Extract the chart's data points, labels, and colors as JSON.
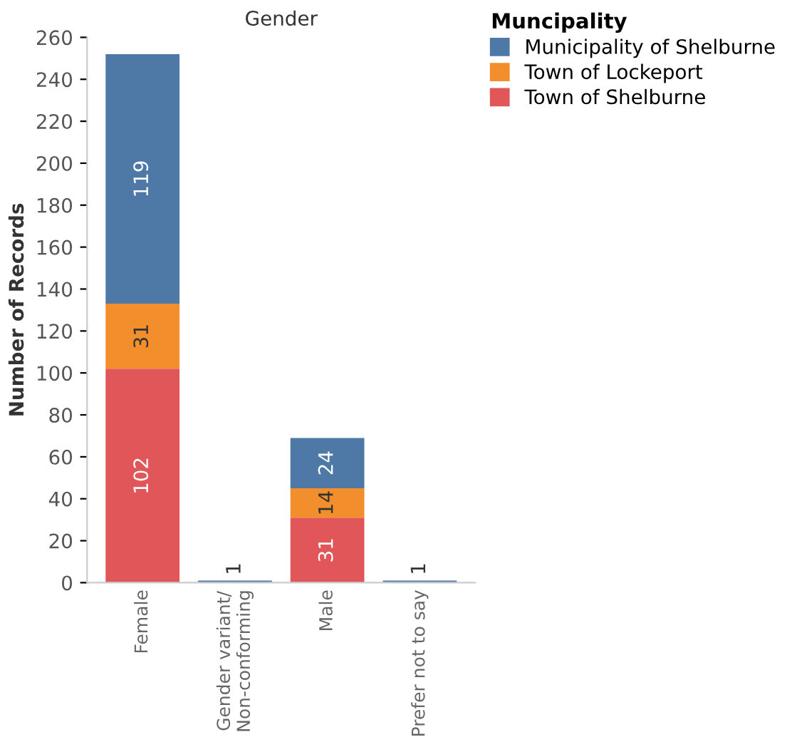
{
  "chart_data": {
    "type": "bar",
    "stacked": true,
    "title": "Gender",
    "ylabel": "Number of Records",
    "legend_title": "Muncipality",
    "legend": "top right",
    "categories": [
      "Female",
      "Gender variant/\nNon-conforming",
      "Male",
      "Prefer not to say"
    ],
    "series": [
      {
        "name": "Town of Shelburne",
        "color": "#e15759",
        "values": [
          102,
          null,
          31,
          null
        ]
      },
      {
        "name": "Town of Lockeport",
        "color": "#f28e2b",
        "values": [
          31,
          null,
          14,
          null
        ]
      },
      {
        "name": "Municipality of Shelburne",
        "color": "#4e79a7",
        "values": [
          119,
          1,
          24,
          1
        ]
      }
    ],
    "ylim": [
      0,
      260
    ],
    "yticks": [
      0,
      20,
      40,
      60,
      80,
      100,
      120,
      140,
      160,
      180,
      200,
      220,
      240,
      260
    ],
    "grid": false,
    "data_labels": true
  }
}
